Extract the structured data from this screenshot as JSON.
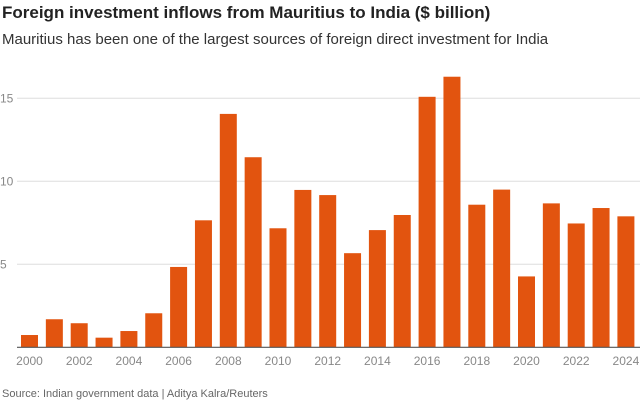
{
  "chart_data": {
    "type": "bar",
    "title": "Foreign investment inflows from Mauritius to India ($ billion)",
    "subtitle": "Mauritius has been one of the largest sources of foreign direct investment for India",
    "source": "Source: Indian government data | Aditya Kalra/Reuters",
    "categories": [
      "2000",
      "2001",
      "2002",
      "2003",
      "2004",
      "2005",
      "2006",
      "2007",
      "2008",
      "2009",
      "2010",
      "2011",
      "2012",
      "2013",
      "2014",
      "2015",
      "2016",
      "2017",
      "2018",
      "2019",
      "2020",
      "2021",
      "2022",
      "2023",
      "2024"
    ],
    "values": [
      0.74,
      1.69,
      1.45,
      0.58,
      0.98,
      2.05,
      4.84,
      7.65,
      14.06,
      11.45,
      7.17,
      9.48,
      9.17,
      5.67,
      7.06,
      7.97,
      15.09,
      16.3,
      8.59,
      9.5,
      4.27,
      8.67,
      7.46,
      8.39,
      7.89
    ],
    "x_tick_labels": [
      "2000",
      "2002",
      "2004",
      "2006",
      "2008",
      "2010",
      "2012",
      "2014",
      "2016",
      "2018",
      "2020",
      "2022",
      "2024"
    ],
    "y_ticks": [
      5,
      10,
      15
    ],
    "ylim": [
      0,
      17
    ],
    "grid": true,
    "bar_color": "#e2540f",
    "xlabel": "",
    "ylabel": ""
  }
}
